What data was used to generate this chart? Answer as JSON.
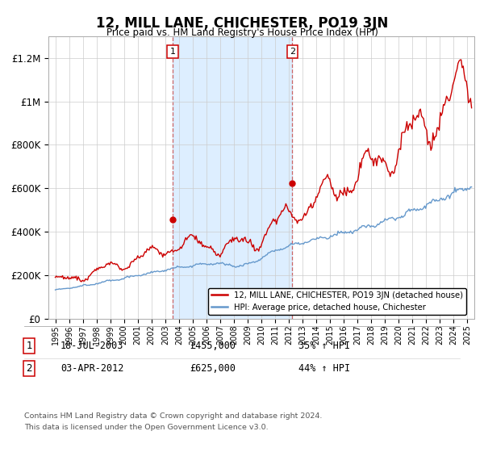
{
  "title": "12, MILL LANE, CHICHESTER, PO19 3JN",
  "subtitle": "Price paid vs. HM Land Registry's House Price Index (HPI)",
  "hpi_label": "HPI: Average price, detached house, Chichester",
  "property_label": "12, MILL LANE, CHICHESTER, PO19 3JN (detached house)",
  "footer_line1": "Contains HM Land Registry data © Crown copyright and database right 2024.",
  "footer_line2": "This data is licensed under the Open Government Licence v3.0.",
  "sale1_date": "18-JUL-2003",
  "sale1_price": "£455,000",
  "sale1_hpi": "35% ↑ HPI",
  "sale1_year": 2003.54,
  "sale1_value": 455000,
  "sale2_date": "03-APR-2012",
  "sale2_price": "£625,000",
  "sale2_hpi": "44% ↑ HPI",
  "sale2_year": 2012.25,
  "sale2_value": 625000,
  "xlim_start": 1994.5,
  "xlim_end": 2025.5,
  "ylim_bottom": 0,
  "ylim_top": 1300000,
  "shaded_region_start": 2003.54,
  "shaded_region_end": 2012.25,
  "property_color": "#cc0000",
  "hpi_color": "#6699cc",
  "shade_color": "#ddeeff",
  "yticks": [
    0,
    200000,
    400000,
    600000,
    800000,
    1000000,
    1200000
  ],
  "ytick_labels": [
    "£0",
    "£200K",
    "£400K",
    "£600K",
    "£800K",
    "£1M",
    "£1.2M"
  ],
  "xtick_years": [
    1995,
    1996,
    1997,
    1998,
    1999,
    2000,
    2001,
    2002,
    2003,
    2004,
    2005,
    2006,
    2007,
    2008,
    2009,
    2010,
    2011,
    2012,
    2013,
    2014,
    2015,
    2016,
    2017,
    2018,
    2019,
    2020,
    2021,
    2022,
    2023,
    2024,
    2025
  ]
}
